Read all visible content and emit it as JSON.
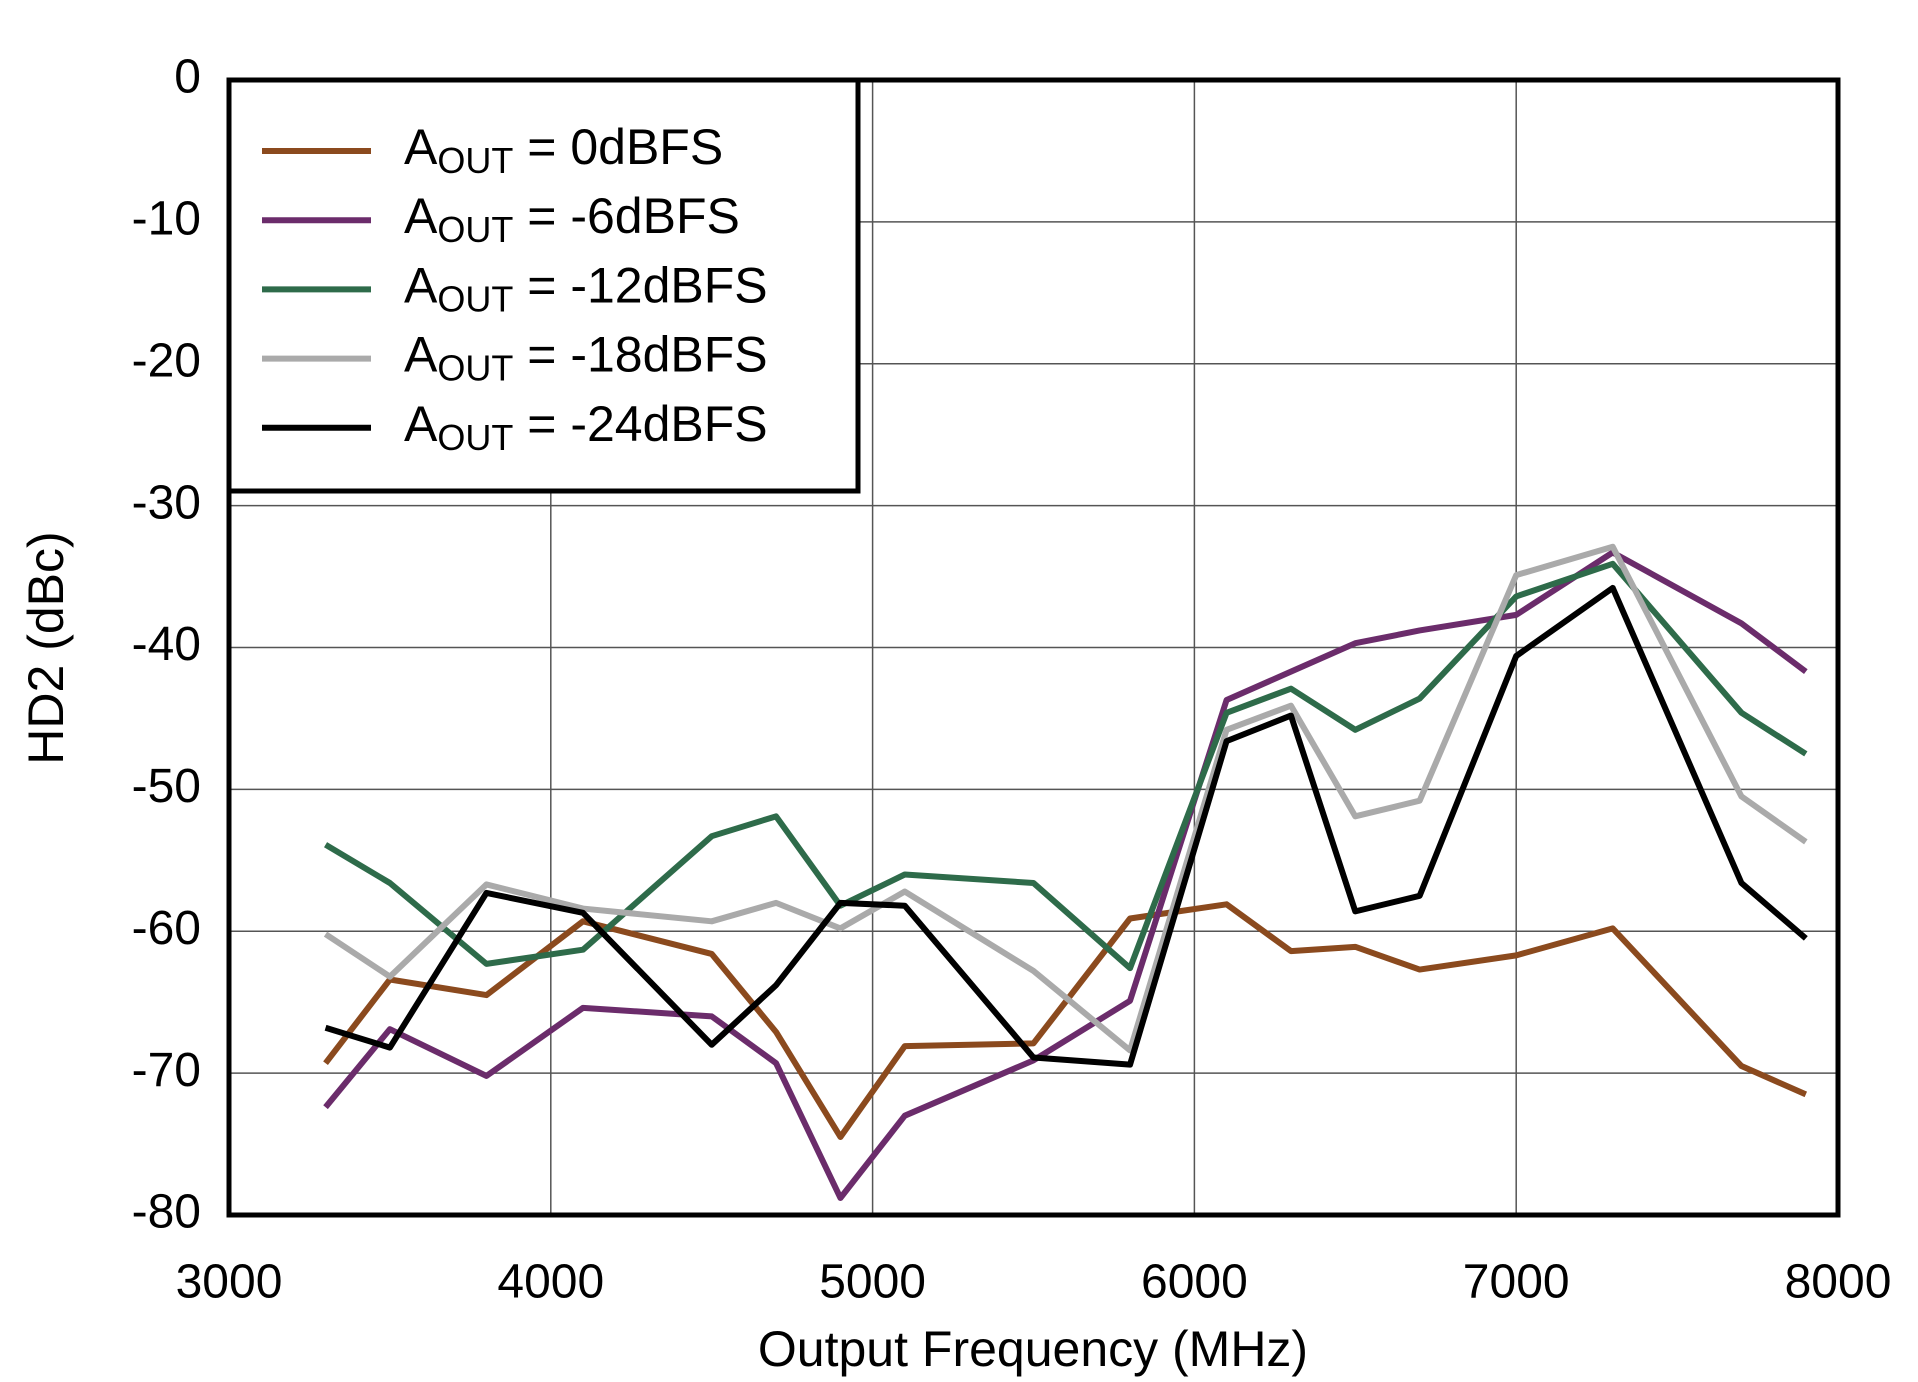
{
  "chart_data": {
    "type": "line",
    "xlabel": "Output Frequency (MHz)",
    "ylabel": "HD2 (dBc)",
    "x": [
      3300,
      3500,
      3800,
      4100,
      4500,
      4700,
      4900,
      5100,
      5500,
      5800,
      6100,
      6300,
      6500,
      6700,
      7000,
      7300,
      7700,
      7900
    ],
    "series": [
      {
        "name": "AOUT = 0dBFS",
        "color": "#8b4a1e",
        "values": [
          -69.3,
          -63.4,
          -64.5,
          -59.3,
          -61.6,
          -67.1,
          -74.5,
          -68.1,
          -67.9,
          -59.1,
          -58.1,
          -61.4,
          -61.1,
          -62.7,
          -61.7,
          -59.8,
          -69.5,
          -71.5
        ]
      },
      {
        "name": "AOUT = -6dBFS",
        "color": "#6b2c6b",
        "values": [
          -72.4,
          -66.9,
          -70.2,
          -65.4,
          -66.0,
          -69.3,
          -78.8,
          -73.0,
          -69.1,
          -64.9,
          -43.7,
          -41.7,
          -39.7,
          -38.8,
          -37.7,
          -33.3,
          -38.3,
          -41.7
        ]
      },
      {
        "name": "AOUT = -12dBFS",
        "color": "#2e6b4a",
        "values": [
          -53.9,
          -56.6,
          -62.3,
          -61.3,
          -53.3,
          -51.9,
          -58.2,
          -56.0,
          -56.6,
          -62.6,
          -44.6,
          -42.9,
          -45.8,
          -43.6,
          -36.4,
          -34.1,
          -44.6,
          -47.5
        ]
      },
      {
        "name": "AOUT = -18dBFS",
        "color": "#aaaaaa",
        "values": [
          -60.2,
          -63.2,
          -56.7,
          -58.4,
          -59.3,
          -58.0,
          -59.8,
          -57.2,
          -62.8,
          -68.4,
          -45.8,
          -44.1,
          -51.9,
          -50.8,
          -34.9,
          -32.9,
          -50.5,
          -53.7
        ]
      },
      {
        "name": "AOUT = -24dBFS",
        "color": "#000000",
        "values": [
          -66.8,
          -68.2,
          -57.3,
          -58.7,
          -68.0,
          -63.8,
          -58.0,
          -58.2,
          -68.9,
          -69.4,
          -46.6,
          -44.8,
          -58.6,
          -57.5,
          -40.6,
          -35.8,
          -56.6,
          -60.5
        ]
      }
    ],
    "xlim": [
      3000,
      8000
    ],
    "xticks": [
      3000,
      4000,
      5000,
      6000,
      7000,
      8000
    ],
    "ylim": [
      -80,
      0
    ],
    "yticks": [
      -80,
      -70,
      -60,
      -50,
      -40,
      -30,
      -20,
      -10,
      0
    ],
    "grid": true,
    "legend": "upper left"
  }
}
